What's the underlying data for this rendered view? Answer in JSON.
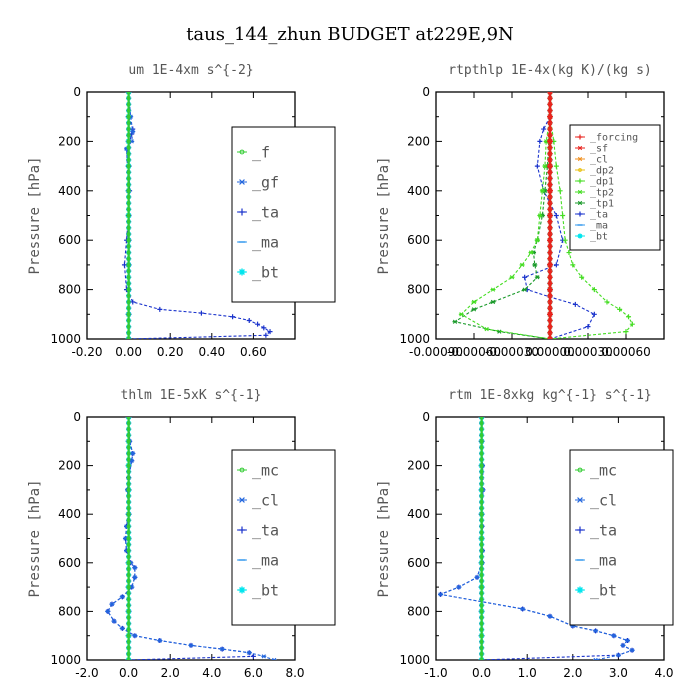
{
  "suptitle": "taus_144_zhun  BUDGET at229E,9N",
  "colors": {
    "green": "#33cc33",
    "deep_blue": "#1a33cc",
    "mid_blue": "#2266dd",
    "light_blue": "#3399ee",
    "cyan": "#00e5ee",
    "red": "#e8231e",
    "orange": "#f09020",
    "yellow": "#e8c010",
    "dark_green": "#1a9a2a",
    "bright_green": "#44dd22"
  },
  "chart_data": [
    {
      "type": "line",
      "title": "um  1E-4xm s^{-2}",
      "ylabel": "Pressure [hPa]",
      "xlim": [
        -0.2,
        0.8
      ],
      "ylim": [
        1000,
        0
      ],
      "xticks": [
        "-0.20",
        "0.00",
        "0.20",
        "0.40",
        "0.60"
      ],
      "xtick_values": [
        -0.2,
        0.0,
        0.2,
        0.4,
        0.6
      ],
      "yticks": [
        "0",
        "200",
        "400",
        "600",
        "800",
        "1000"
      ],
      "legend": {
        "position": "top-right",
        "font": 15
      },
      "series": [
        {
          "name": "_f",
          "color": "green",
          "marker": "circle",
          "x": [
            0,
            0,
            0,
            0,
            0,
            0,
            0,
            0,
            0,
            0,
            0
          ],
          "y": [
            0,
            100,
            200,
            300,
            400,
            500,
            600,
            700,
            800,
            900,
            1000
          ]
        },
        {
          "name": "_gf",
          "color": "mid_blue",
          "marker": "star",
          "x": [
            0,
            0.01,
            0.02,
            0.015,
            -0.01,
            0,
            0,
            0,
            0,
            0,
            0
          ],
          "y": [
            0,
            100,
            160,
            200,
            230,
            400,
            600,
            700,
            800,
            900,
            1000
          ]
        },
        {
          "name": "_ta",
          "color": "deep_blue",
          "marker": "plus",
          "x": [
            0,
            0,
            0.02,
            0.015,
            -0.005,
            0,
            0.005,
            0,
            -0.01,
            -0.02,
            -0.01,
            0.02,
            0.15,
            0.35,
            0.5,
            0.58,
            0.62,
            0.65,
            0.68,
            0.66,
            0
          ],
          "y": [
            0,
            100,
            150,
            170,
            230,
            300,
            400,
            500,
            600,
            700,
            800,
            850,
            880,
            895,
            910,
            925,
            940,
            955,
            970,
            985,
            1000
          ]
        },
        {
          "name": "_ma",
          "color": "light_blue",
          "marker": "dash",
          "x": [
            0,
            0,
            0,
            0,
            0,
            0,
            0,
            0,
            0,
            0,
            0
          ],
          "y": [
            0,
            100,
            200,
            300,
            400,
            500,
            600,
            700,
            800,
            900,
            1000
          ]
        },
        {
          "name": "_bt",
          "color": "cyan",
          "marker": "asterisk",
          "x": [
            0,
            0,
            0,
            0,
            0,
            0,
            0,
            0,
            0,
            0,
            0
          ],
          "y": [
            0,
            100,
            200,
            300,
            400,
            500,
            600,
            700,
            800,
            900,
            1000
          ]
        }
      ]
    },
    {
      "type": "line",
      "title": "rtpthlp  1E-4x(kg K)/(kg s)",
      "ylabel": "Pressure [hPa]",
      "xlim": [
        -0.0009,
        0.0009
      ],
      "ylim": [
        1000,
        0
      ],
      "xticks": [
        "-0.00090",
        "-0.00060",
        "-0.00030",
        "0.00000",
        "0.00030",
        "0.00060"
      ],
      "xtick_values": [
        -0.0009,
        -0.0006,
        -0.0003,
        0.0,
        0.0003,
        0.0006
      ],
      "yticks": [
        "0",
        "200",
        "400",
        "600",
        "800",
        "1000"
      ],
      "legend": {
        "position": "top-right",
        "font": 10
      },
      "series": [
        {
          "name": "_forcing",
          "color": "red",
          "marker": "plus",
          "x": [
            0,
            0,
            0,
            0,
            0,
            0,
            0,
            0,
            0,
            0,
            0
          ],
          "y": [
            0,
            100,
            200,
            300,
            400,
            500,
            600,
            700,
            800,
            900,
            1000
          ]
        },
        {
          "name": "_sf",
          "color": "red",
          "marker": "star",
          "x": [
            0,
            0,
            0,
            0,
            0,
            0,
            0,
            0,
            0,
            0,
            0
          ],
          "y": [
            0,
            100,
            200,
            300,
            400,
            500,
            600,
            700,
            800,
            900,
            1000
          ]
        },
        {
          "name": "_cl",
          "color": "orange",
          "marker": "star",
          "x": [
            0,
            0,
            0,
            0,
            0,
            0,
            0,
            0,
            0,
            0,
            0
          ],
          "y": [
            0,
            100,
            200,
            300,
            400,
            500,
            600,
            700,
            800,
            900,
            1000
          ]
        },
        {
          "name": "_dp2",
          "color": "yellow",
          "marker": "circle",
          "x": [
            0,
            0,
            0,
            0,
            0,
            0,
            0,
            0,
            0,
            0,
            0
          ],
          "y": [
            0,
            100,
            200,
            300,
            400,
            500,
            600,
            700,
            800,
            900,
            1000
          ]
        },
        {
          "name": "_dp1",
          "color": "bright_green",
          "marker": "plus",
          "x": [
            0,
            0,
            3e-05,
            5e-05,
            8e-05,
            0.0001,
            0.00012,
            0.00015,
            0.00018,
            0.00025,
            0.00035,
            0.00045,
            0.00055,
            0.00062,
            0.00065,
            0.0006,
            0
          ],
          "y": [
            0,
            100,
            200,
            300,
            400,
            500,
            600,
            650,
            700,
            750,
            800,
            850,
            880,
            910,
            940,
            970,
            1000
          ]
        },
        {
          "name": "_tp2",
          "color": "bright_green",
          "marker": "star",
          "x": [
            0,
            0,
            -3e-05,
            -4e-05,
            -6e-05,
            -8e-05,
            -0.0001,
            -0.00015,
            -0.00022,
            -0.0003,
            -0.00045,
            -0.0006,
            -0.0007,
            -0.0005,
            0
          ],
          "y": [
            0,
            100,
            200,
            300,
            400,
            500,
            600,
            650,
            700,
            750,
            800,
            850,
            900,
            960,
            1000
          ]
        },
        {
          "name": "_tp1",
          "color": "dark_green",
          "marker": "star",
          "x": [
            0,
            0,
            -1e-05,
            -2e-05,
            -4e-05,
            -6e-05,
            -0.0001,
            -0.00013,
            -0.00012,
            -0.0001,
            -0.0002,
            -0.00045,
            -0.0006,
            -0.00075,
            -0.0004,
            0
          ],
          "y": [
            0,
            100,
            200,
            300,
            400,
            500,
            600,
            650,
            700,
            750,
            800,
            850,
            880,
            930,
            970,
            1000
          ]
        },
        {
          "name": "_ta",
          "color": "deep_blue",
          "marker": "plus",
          "x": [
            0,
            0,
            -5e-05,
            -8e-05,
            -0.0001,
            -5e-05,
            5e-05,
            0.0001,
            5e-05,
            -0.0002,
            -0.00018,
            0,
            0.0002,
            0.00035,
            0.0003,
            0
          ],
          "y": [
            0,
            100,
            150,
            200,
            300,
            400,
            500,
            600,
            700,
            750,
            800,
            830,
            860,
            900,
            950,
            1000
          ]
        },
        {
          "name": "_ma",
          "color": "light_blue",
          "marker": "dash",
          "x": [
            0,
            0,
            0,
            0,
            0,
            0,
            0,
            0,
            0,
            0,
            0
          ],
          "y": [
            0,
            100,
            200,
            300,
            400,
            500,
            600,
            700,
            800,
            900,
            1000
          ]
        },
        {
          "name": "_bt",
          "color": "cyan",
          "marker": "asterisk",
          "x": [
            0,
            0,
            0,
            0,
            0,
            0,
            0,
            0,
            0,
            0,
            0
          ],
          "y": [
            0,
            100,
            200,
            300,
            400,
            500,
            600,
            700,
            800,
            900,
            1000
          ]
        }
      ]
    },
    {
      "type": "line",
      "title": "thlm  1E-5xK s^{-1}",
      "ylabel": "Pressure [hPa]",
      "xlim": [
        -2.0,
        8.0
      ],
      "ylim": [
        1000,
        0
      ],
      "xticks": [
        "-2.0",
        "0.0",
        "2.0",
        "4.0",
        "6.0",
        "8.0"
      ],
      "xtick_values": [
        -2.0,
        0.0,
        2.0,
        4.0,
        6.0,
        8.0
      ],
      "yticks": [
        "0",
        "200",
        "400",
        "600",
        "800",
        "1000"
      ],
      "legend": {
        "position": "top-right",
        "font": 15
      },
      "series": [
        {
          "name": "_mc",
          "color": "green",
          "marker": "circle",
          "x": [
            0,
            0,
            0,
            0,
            0,
            0,
            0,
            0,
            0,
            0,
            0
          ],
          "y": [
            0,
            100,
            200,
            300,
            400,
            500,
            600,
            700,
            800,
            900,
            1000
          ]
        },
        {
          "name": "_cl",
          "color": "mid_blue",
          "marker": "star",
          "x": [
            0,
            0.05,
            0.2,
            0.15,
            0,
            -0.05,
            0,
            -0.1,
            -0.15,
            -0.1,
            0.1,
            0.3,
            0.3,
            0.15,
            -0.3,
            -0.8,
            -1.0,
            -0.7,
            -0.3,
            0.3,
            1.5,
            3.0,
            4.5,
            5.8,
            6.5,
            7.0
          ],
          "y": [
            0,
            100,
            150,
            180,
            250,
            300,
            400,
            450,
            500,
            550,
            600,
            620,
            660,
            700,
            740,
            770,
            800,
            840,
            870,
            900,
            920,
            940,
            955,
            970,
            985,
            1000
          ]
        },
        {
          "name": "_ta",
          "color": "deep_blue",
          "marker": "plus",
          "x": [
            0,
            0.05,
            0.2,
            0.15,
            0,
            -0.05,
            0,
            -0.1,
            -0.15,
            -0.1,
            0.1,
            0.3,
            0.3,
            0.15,
            -0.3,
            -0.8,
            -1.0,
            -0.7,
            -0.3,
            0.3,
            1.5,
            3.0,
            4.5,
            5.8,
            6.0,
            0
          ],
          "y": [
            0,
            100,
            150,
            180,
            250,
            300,
            400,
            450,
            500,
            550,
            600,
            620,
            660,
            700,
            740,
            770,
            800,
            840,
            870,
            900,
            920,
            940,
            955,
            970,
            985,
            1000
          ]
        },
        {
          "name": "_ma",
          "color": "light_blue",
          "marker": "dash",
          "x": [
            0,
            0,
            0,
            0,
            0,
            0,
            0,
            0,
            0,
            0,
            0
          ],
          "y": [
            0,
            100,
            200,
            300,
            400,
            500,
            600,
            700,
            800,
            900,
            1000
          ]
        },
        {
          "name": "_bt",
          "color": "cyan",
          "marker": "asterisk",
          "x": [
            0,
            0,
            0,
            0,
            0,
            0,
            0,
            0,
            0,
            0,
            0
          ],
          "y": [
            0,
            100,
            200,
            300,
            400,
            500,
            600,
            700,
            800,
            900,
            1000
          ]
        }
      ]
    },
    {
      "type": "line",
      "title": "rtm  1E-8xkg kg^{-1} s^{-1}",
      "ylabel": "Pressure [hPa]",
      "xlim": [
        -1.0,
        4.0
      ],
      "ylim": [
        1000,
        0
      ],
      "xticks": [
        "-1.0",
        "0.0",
        "1.0",
        "2.0",
        "3.0",
        "4.0"
      ],
      "xtick_values": [
        -1.0,
        0.0,
        1.0,
        2.0,
        3.0,
        4.0
      ],
      "yticks": [
        "0",
        "200",
        "400",
        "600",
        "800",
        "1000"
      ],
      "legend": {
        "position": "top-right",
        "font": 15
      },
      "series": [
        {
          "name": "_mc",
          "color": "green",
          "marker": "circle",
          "x": [
            0,
            0,
            0,
            0,
            0,
            0,
            0,
            0,
            0,
            0,
            0
          ],
          "y": [
            0,
            100,
            200,
            300,
            400,
            500,
            600,
            700,
            800,
            900,
            1000
          ]
        },
        {
          "name": "_cl",
          "color": "mid_blue",
          "marker": "star",
          "x": [
            0,
            0,
            0.02,
            0.03,
            0,
            0.01,
            0.02,
            0.01,
            -0.1,
            -0.5,
            -0.9,
            0.9,
            1.5,
            2.0,
            2.5,
            2.9,
            3.2,
            3.1,
            3.3,
            3.0,
            2.5
          ],
          "y": [
            0,
            100,
            200,
            300,
            400,
            450,
            550,
            600,
            660,
            700,
            730,
            790,
            820,
            860,
            880,
            900,
            920,
            940,
            960,
            980,
            1000
          ]
        },
        {
          "name": "_ta",
          "color": "deep_blue",
          "marker": "plus",
          "x": [
            0,
            0,
            0.02,
            0.03,
            0,
            0.01,
            0.02,
            0.01,
            -0.1,
            -0.5,
            -0.9,
            0.9,
            1.5,
            2.0,
            2.5,
            2.9,
            3.2,
            3.1,
            3.3,
            3.0,
            0
          ],
          "y": [
            0,
            100,
            200,
            300,
            400,
            450,
            550,
            600,
            660,
            700,
            730,
            790,
            820,
            860,
            880,
            900,
            920,
            940,
            960,
            980,
            1000
          ]
        },
        {
          "name": "_ma",
          "color": "light_blue",
          "marker": "dash",
          "x": [
            0,
            0,
            0,
            0,
            0,
            0,
            0,
            0,
            0,
            0,
            0
          ],
          "y": [
            0,
            100,
            200,
            300,
            400,
            500,
            600,
            700,
            800,
            900,
            1000
          ]
        },
        {
          "name": "_bt",
          "color": "cyan",
          "marker": "asterisk",
          "x": [
            0,
            0,
            0,
            0,
            0,
            0,
            0,
            0,
            0,
            0,
            0
          ],
          "y": [
            0,
            100,
            200,
            300,
            400,
            500,
            600,
            700,
            800,
            900,
            1000
          ]
        }
      ]
    }
  ]
}
